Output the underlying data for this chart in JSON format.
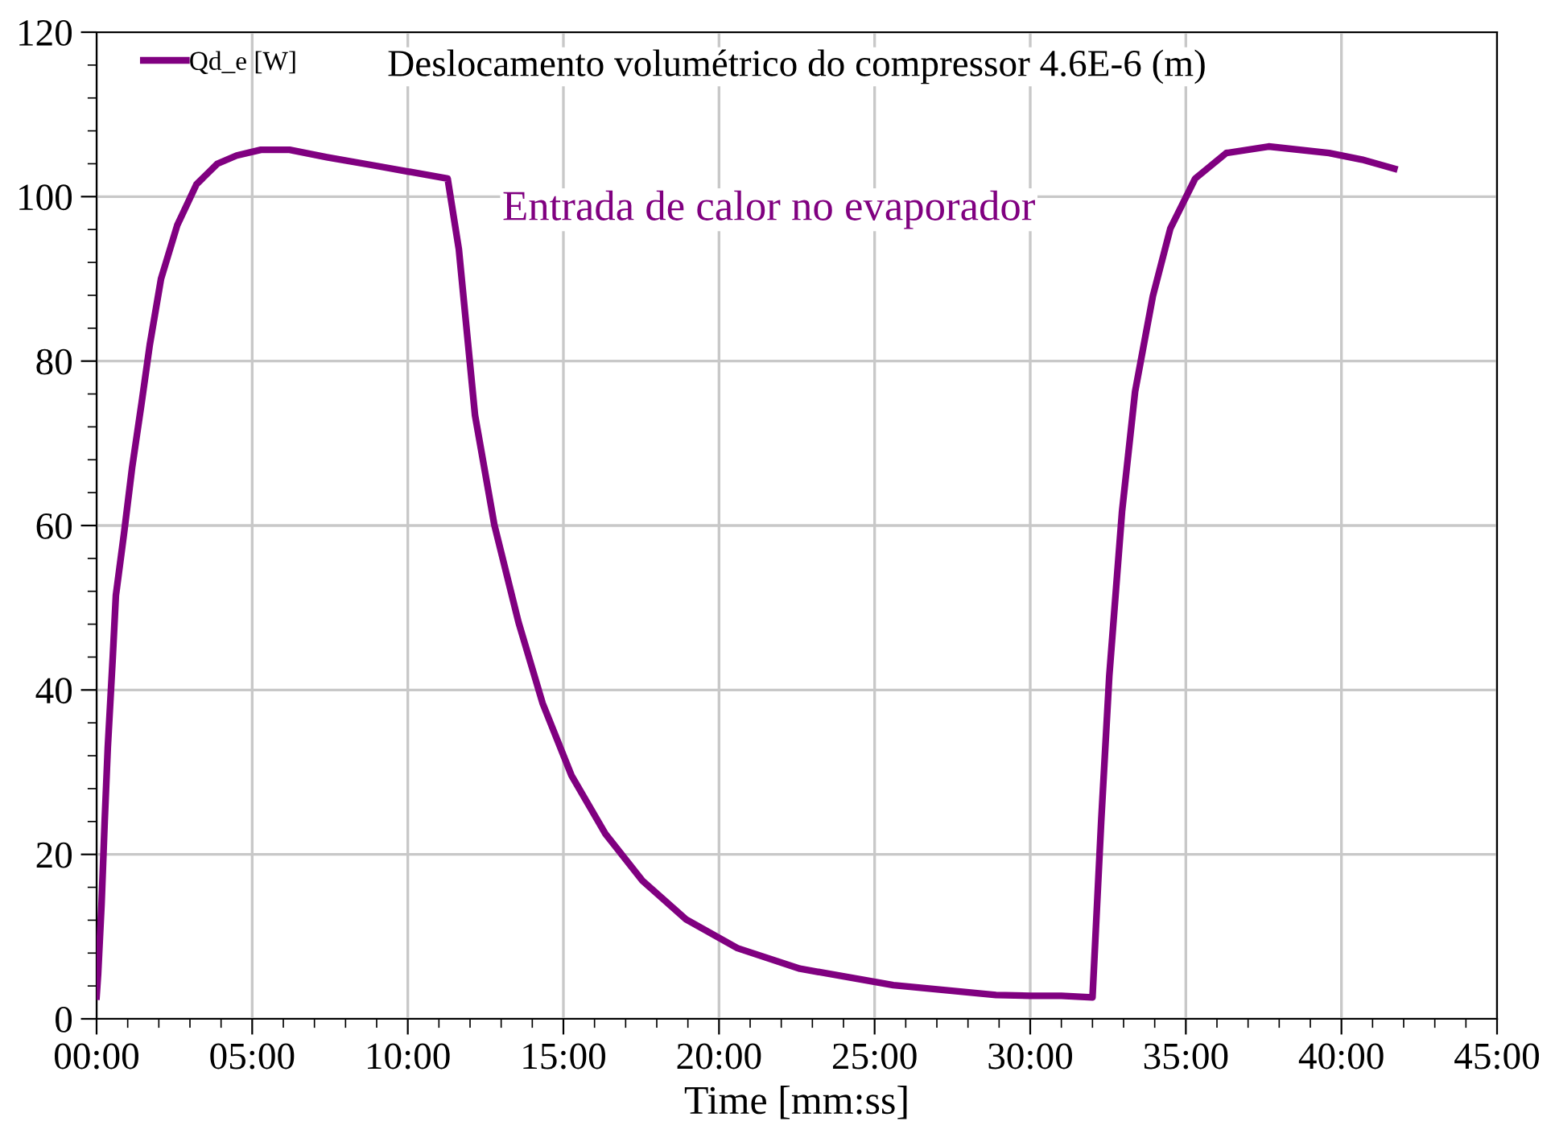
{
  "chart_data": {
    "type": "line",
    "xlabel": "Time [mm:ss]",
    "annotations": [
      "Deslocamento volumétrico do compressor 4.6E-6 (m)",
      "Entrada de calor no evaporador"
    ],
    "series": [
      {
        "name": "Qd_e [W]",
        "color": "#800080",
        "x": [
          0,
          0.05,
          0.16,
          0.26,
          0.36,
          0.52,
          0.62,
          0.88,
          1.14,
          1.45,
          1.71,
          2.07,
          2.59,
          3.21,
          3.88,
          4.5,
          5.28,
          6.2,
          7.4,
          8.9,
          11.28,
          11.64,
          12.16,
          12.78,
          13.56,
          14.33,
          15.26,
          16.35,
          17.54,
          18.94,
          20.59,
          22.6,
          25.6,
          28.9,
          30.0,
          31.0,
          32.0,
          32.28,
          32.54,
          32.95,
          33.37,
          33.94,
          34.5,
          35.3,
          36.3,
          37.66,
          39.6,
          40.66,
          41.7
        ],
        "values": [
          2.7,
          5.5,
          14,
          24,
          33,
          44,
          51.5,
          59,
          67,
          75,
          82,
          90,
          96.5,
          101.5,
          104,
          105,
          105.7,
          105.7,
          104.8,
          103.8,
          102.2,
          93.6,
          73.4,
          60.1,
          48.2,
          38.4,
          29.6,
          22.5,
          16.8,
          12.1,
          8.6,
          6.1,
          4.1,
          2.9,
          2.8,
          2.8,
          2.6,
          24,
          41.7,
          61.7,
          76.3,
          87.9,
          96.1,
          102.2,
          105.3,
          106.1,
          105.3,
          104.5,
          103.4
        ]
      }
    ],
    "xlim": [
      0,
      45
    ],
    "xticks": [
      {
        "value": 0,
        "label": "00:00"
      },
      {
        "value": 5,
        "label": "05:00"
      },
      {
        "value": 10,
        "label": "10:00"
      },
      {
        "value": 15,
        "label": "15:00"
      },
      {
        "value": 20,
        "label": "20:00"
      },
      {
        "value": 25,
        "label": "25:00"
      },
      {
        "value": 30,
        "label": "30:00"
      },
      {
        "value": 35,
        "label": "35:00"
      },
      {
        "value": 40,
        "label": "40:00"
      },
      {
        "value": 45,
        "label": "45:00"
      }
    ],
    "ylim": [
      0,
      120
    ],
    "yticks": [
      0,
      20,
      40,
      60,
      80,
      100,
      120
    ],
    "grid": true,
    "legend": "top left",
    "marker": "none",
    "line_style": "solid"
  }
}
